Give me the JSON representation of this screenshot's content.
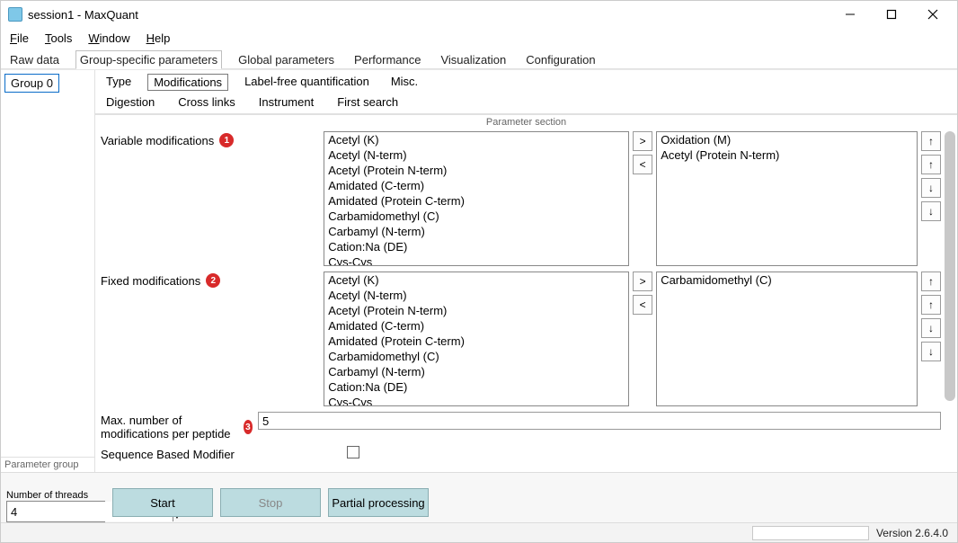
{
  "window": {
    "title": "session1 - MaxQuant"
  },
  "menubar": [
    "File",
    "Tools",
    "Window",
    "Help"
  ],
  "main_tabs": {
    "items": [
      "Raw data",
      "Group-specific parameters",
      "Global parameters",
      "Performance",
      "Visualization",
      "Configuration"
    ],
    "active_index": 1
  },
  "left": {
    "group_label": "Group 0",
    "footer": "Parameter group"
  },
  "sub_tabs_row1": {
    "items": [
      "Type",
      "Modifications",
      "Label-free quantification",
      "Misc."
    ],
    "active_index": 1
  },
  "sub_tabs_row2": [
    "Digestion",
    "Cross links",
    "Instrument",
    "First search"
  ],
  "section_label": "Parameter section",
  "variable_mods": {
    "label": "Variable modifications",
    "badge": "1",
    "available": [
      "Acetyl (K)",
      "Acetyl (N-term)",
      "Acetyl (Protein N-term)",
      "Amidated (C-term)",
      "Amidated (Protein C-term)",
      "Carbamidomethyl (C)",
      "Carbamyl (N-term)",
      "Cation:Na (DE)",
      "Cys-Cys"
    ],
    "selected": [
      "Oxidation (M)",
      "Acetyl (Protein N-term)"
    ]
  },
  "fixed_mods": {
    "label": "Fixed modifications",
    "badge": "2",
    "available": [
      "Acetyl (K)",
      "Acetyl (N-term)",
      "Acetyl (Protein N-term)",
      "Amidated (C-term)",
      "Amidated (Protein C-term)",
      "Carbamidomethyl (C)",
      "Carbamyl (N-term)",
      "Cation:Na (DE)",
      "Cys-Cys"
    ],
    "selected": [
      "Carbamidomethyl (C)"
    ]
  },
  "max_mods": {
    "label": "Max. number of modifications per peptide",
    "badge": "3",
    "value": "5"
  },
  "seq_mod": {
    "label": "Sequence Based Modifier",
    "checked": false
  },
  "bottom": {
    "threads_label": "Number of threads",
    "threads_value": "4",
    "start": "Start",
    "stop": "Stop",
    "partial": "Partial processing"
  },
  "status": {
    "version": "Version 2.6.4.0"
  },
  "icons": {
    "move_right": ">",
    "move_left": "<",
    "up": "↑",
    "down": "↓"
  },
  "colors": {
    "accent_button": "#bcdce0",
    "badge": "#d82a2a",
    "selection_border": "#0a6cc8"
  }
}
